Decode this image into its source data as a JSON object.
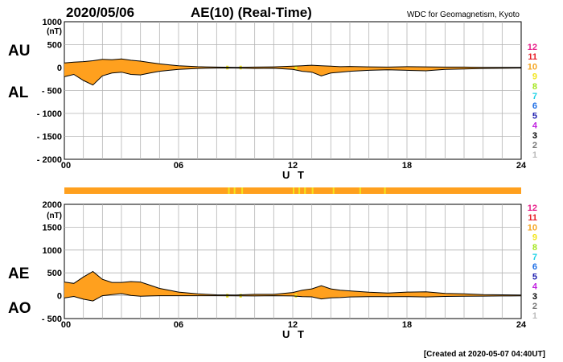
{
  "header": {
    "date": "2020/05/06",
    "title": "AE(10) (Real-Time)",
    "source": "WDC for Geomagnetism, Kyoto"
  },
  "footer": {
    "created": "[Created at 2020-05-07 04:40UT]"
  },
  "colors": {
    "fill": "#FFA01E",
    "fill_yellow": "#F2E61E",
    "grid": "#b4b4b4",
    "line": "#000000",
    "station_bar": "#FFA01E"
  },
  "legend": {
    "items": [
      {
        "label": "12",
        "color": "#E8208A"
      },
      {
        "label": "11",
        "color": "#E8202A"
      },
      {
        "label": "10",
        "color": "#F5A623"
      },
      {
        "label": "9",
        "color": "#F2E61E"
      },
      {
        "label": "8",
        "color": "#A4E61E"
      },
      {
        "label": "7",
        "color": "#1ED2E6"
      },
      {
        "label": "6",
        "color": "#1E6EE6"
      },
      {
        "label": "5",
        "color": "#2020B0"
      },
      {
        "label": "4",
        "color": "#C020E0"
      },
      {
        "label": "3",
        "color": "#000000"
      },
      {
        "label": "2",
        "color": "#777777"
      },
      {
        "label": "1",
        "color": "#BBBBBB"
      }
    ]
  },
  "chart_data": [
    {
      "type": "area",
      "title": "AU / AL",
      "upper_label": "AU",
      "lower_label": "AL",
      "unit": "(nT)",
      "xlabel": "U T",
      "ylabel": "",
      "xlim": [
        0,
        24
      ],
      "ylim": [
        -2000,
        1000
      ],
      "xticks": [
        "00",
        "06",
        "12",
        "18",
        "24"
      ],
      "yticks": [
        "1000",
        "500",
        "0",
        "- 500",
        "- 1000",
        "- 1500",
        "- 2000"
      ],
      "ytick_values": [
        1000,
        500,
        0,
        -500,
        -1000,
        -1500,
        -2000
      ],
      "x": [
        0,
        0.5,
        1,
        1.5,
        2,
        2.5,
        3,
        3.5,
        4,
        4.5,
        5,
        5.5,
        6,
        7,
        8,
        9,
        10,
        11,
        12,
        12.5,
        13,
        13.5,
        14,
        14.5,
        15,
        16,
        17,
        18,
        19,
        20,
        21,
        22,
        23,
        24
      ],
      "series": [
        {
          "name": "AU",
          "values": [
            100,
            120,
            130,
            150,
            180,
            170,
            190,
            160,
            140,
            110,
            80,
            60,
            40,
            20,
            10,
            5,
            10,
            15,
            30,
            40,
            50,
            40,
            30,
            20,
            25,
            15,
            10,
            20,
            15,
            10,
            10,
            5,
            5,
            5
          ]
        },
        {
          "name": "AL",
          "values": [
            -200,
            -150,
            -280,
            -380,
            -180,
            -120,
            -100,
            -150,
            -160,
            -120,
            -80,
            -60,
            -40,
            -20,
            -10,
            -10,
            -20,
            -15,
            -40,
            -80,
            -100,
            -180,
            -120,
            -100,
            -80,
            -60,
            -50,
            -60,
            -70,
            -40,
            -30,
            -20,
            -15,
            -10
          ]
        }
      ]
    },
    {
      "type": "area",
      "title": "AE / AO",
      "upper_label": "AE",
      "lower_label": "AO",
      "unit": "(nT)",
      "xlabel": "U T",
      "ylabel": "",
      "xlim": [
        0,
        24
      ],
      "ylim": [
        -500,
        2000
      ],
      "xticks": [
        "00",
        "06",
        "12",
        "18",
        "24"
      ],
      "yticks": [
        "2000",
        "1500",
        "1000",
        "500",
        "0",
        "- 500"
      ],
      "ytick_values": [
        2000,
        1500,
        1000,
        500,
        0,
        -500
      ],
      "x": [
        0,
        0.5,
        1,
        1.5,
        2,
        2.5,
        3,
        3.5,
        4,
        4.5,
        5,
        5.5,
        6,
        7,
        8,
        9,
        10,
        11,
        12,
        12.5,
        13,
        13.5,
        14,
        14.5,
        15,
        16,
        17,
        18,
        19,
        20,
        21,
        22,
        23,
        24
      ],
      "series": [
        {
          "name": "AE",
          "values": [
            300,
            270,
            410,
            530,
            360,
            290,
            290,
            310,
            300,
            230,
            160,
            120,
            80,
            40,
            20,
            15,
            30,
            30,
            70,
            120,
            150,
            220,
            150,
            120,
            105,
            75,
            60,
            80,
            85,
            50,
            40,
            25,
            20,
            15
          ]
        },
        {
          "name": "AO",
          "values": [
            -50,
            -15,
            -75,
            -115,
            0,
            25,
            45,
            5,
            -10,
            -5,
            0,
            0,
            0,
            0,
            0,
            -3,
            -5,
            0,
            -5,
            -20,
            -25,
            -70,
            -45,
            -40,
            -27,
            -22,
            -20,
            -20,
            -27,
            -15,
            -10,
            -8,
            -5,
            -3
          ]
        }
      ]
    }
  ]
}
